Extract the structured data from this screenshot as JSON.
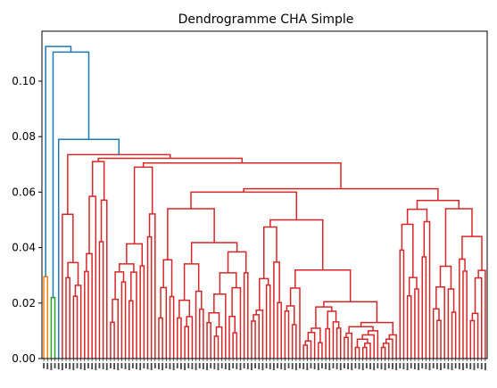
{
  "chart_data": {
    "type": "dendrogram",
    "title": "Dendrogramme CHA Simple",
    "xlabel": "",
    "ylabel": "",
    "ylim": [
      0,
      0.118
    ],
    "yticks": [
      "0.00",
      "0.02",
      "0.04",
      "0.06",
      "0.08",
      "0.10"
    ],
    "ytick_values": [
      0.0,
      0.02,
      0.04,
      0.06,
      0.08,
      0.1
    ],
    "grid": false,
    "leaf_count": 120,
    "colors": {
      "cluster_orange": "#ff7f0e",
      "cluster_green": "#2ca02c",
      "cluster_red": "#d62728",
      "above_threshold": "#1f77b4"
    },
    "top_merges": [
      {
        "height": 0.1125,
        "label": "root"
      },
      {
        "height": 0.1105,
        "label": "merge-2"
      },
      {
        "height": 0.079,
        "label": "merge-3"
      },
      {
        "height": 0.0735,
        "label": "red-cluster-root"
      }
    ],
    "cluster_heights": {
      "orange": 0.0295,
      "green": 0.022,
      "red": 0.0735
    }
  }
}
